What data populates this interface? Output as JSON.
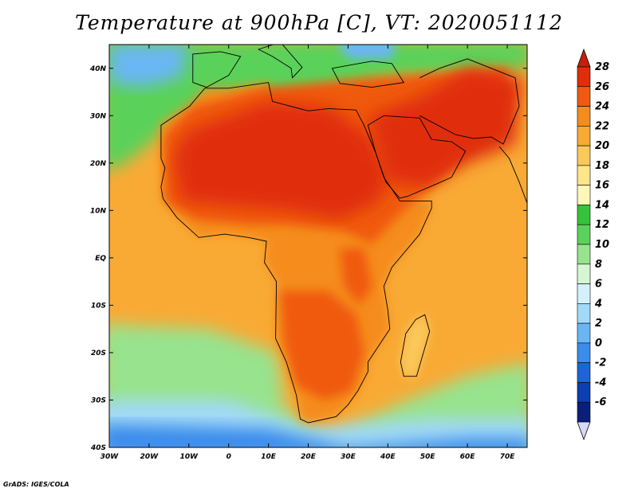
{
  "title": "Temperature at 900hPa [C], VT: 2020051112",
  "credit": "GrADS: IGES/COLA",
  "map": {
    "lon_range": [
      -30,
      75
    ],
    "lat_range": [
      -40,
      45
    ],
    "x_ticks": [
      {
        "lon": -30,
        "label": "30W"
      },
      {
        "lon": -20,
        "label": "20W"
      },
      {
        "lon": -10,
        "label": "10W"
      },
      {
        "lon": 0,
        "label": "0"
      },
      {
        "lon": 10,
        "label": "10E"
      },
      {
        "lon": 20,
        "label": "20E"
      },
      {
        "lon": 30,
        "label": "30E"
      },
      {
        "lon": 40,
        "label": "40E"
      },
      {
        "lon": 50,
        "label": "50E"
      },
      {
        "lon": 60,
        "label": "60E"
      },
      {
        "lon": 70,
        "label": "70E"
      }
    ],
    "y_ticks": [
      {
        "lat": 40,
        "label": "40N"
      },
      {
        "lat": 30,
        "label": "30N"
      },
      {
        "lat": 20,
        "label": "20N"
      },
      {
        "lat": 10,
        "label": "10N"
      },
      {
        "lat": 0,
        "label": "EQ"
      },
      {
        "lat": -10,
        "label": "10S"
      },
      {
        "lat": -20,
        "label": "20S"
      },
      {
        "lat": -30,
        "label": "30S"
      },
      {
        "lat": -40,
        "label": "40S"
      }
    ]
  },
  "colorbar": {
    "labels": [
      "28",
      "26",
      "24",
      "22",
      "20",
      "18",
      "16",
      "14",
      "12",
      "10",
      "8",
      "6",
      "4",
      "2",
      "0",
      "-2",
      "-4",
      "-6"
    ],
    "colors_top_to_bottom": [
      "#e02d0a",
      "#f05a10",
      "#f58c1e",
      "#f8aa35",
      "#fbc85a",
      "#fde58a",
      "#fdf7b8",
      "#36c23a",
      "#5ad25a",
      "#97e38e",
      "#d6f6d2",
      "#d4f0fd",
      "#a2d9f8",
      "#6ab6f4",
      "#3b8ceb",
      "#1e64d8",
      "#0d3fb2",
      "#0a1f7a"
    ],
    "top_arrow_color": "#c81e0a",
    "bottom_arrow_color": "#d8d8fa"
  },
  "field_colors": {
    "ocean_north": "#5ad25a",
    "med": "#6ab6f4",
    "atlantic": "#f8aa35",
    "indian": "#f8aa35",
    "south_cool": "#97e38e",
    "south_cold": "#a2d9f8",
    "south_coldest": "#3b8ceb",
    "sahara_hot": "#e02d0a",
    "arabia_hot": "#e02d0a",
    "land_warm": "#f05a10",
    "land_mild": "#f58c1e",
    "south_land": "#f05a10",
    "madagascar": "#fbc85a"
  },
  "contours": {
    "africa": [
      [
        -17,
        21
      ],
      [
        -17,
        28
      ],
      [
        -9.8,
        32
      ],
      [
        -6,
        35.8
      ],
      [
        0,
        35.8
      ],
      [
        10,
        37
      ],
      [
        11,
        33
      ],
      [
        20,
        31
      ],
      [
        25,
        31.5
      ],
      [
        32,
        31.2
      ],
      [
        34,
        28
      ],
      [
        37,
        22
      ],
      [
        39,
        17
      ],
      [
        43,
        12
      ],
      [
        51,
        12
      ],
      [
        51,
        10.5
      ],
      [
        48,
        5
      ],
      [
        41,
        -2
      ],
      [
        39,
        -6
      ],
      [
        40,
        -11
      ],
      [
        40.5,
        -15
      ],
      [
        35,
        -22
      ],
      [
        35,
        -24
      ],
      [
        32.5,
        -28
      ],
      [
        30,
        -31
      ],
      [
        27,
        -33.5
      ],
      [
        20,
        -34.8
      ],
      [
        18,
        -34
      ],
      [
        17,
        -29
      ],
      [
        14.5,
        -22
      ],
      [
        11.8,
        -17
      ],
      [
        12,
        -5
      ],
      [
        9,
        -1
      ],
      [
        9.5,
        3.5
      ],
      [
        5,
        4.3
      ],
      [
        -1,
        5
      ],
      [
        -7.5,
        4.3
      ],
      [
        -13,
        8.5
      ],
      [
        -16.5,
        12.5
      ],
      [
        -17,
        15
      ],
      [
        -16,
        19
      ],
      [
        -17,
        21
      ]
    ],
    "madagascar": [
      [
        49.3,
        -12
      ],
      [
        50.5,
        -15.5
      ],
      [
        47.2,
        -25
      ],
      [
        44,
        -25
      ],
      [
        43.2,
        -22
      ],
      [
        44.5,
        -16
      ],
      [
        47,
        -13
      ],
      [
        49.3,
        -12
      ]
    ],
    "arabia": [
      [
        35,
        28
      ],
      [
        37,
        22
      ],
      [
        39.5,
        16
      ],
      [
        43,
        12.6
      ],
      [
        45,
        13
      ],
      [
        52,
        15.5
      ],
      [
        56,
        17
      ],
      [
        59.5,
        22.5
      ],
      [
        56,
        24.5
      ],
      [
        51,
        25
      ],
      [
        50,
        26.5
      ],
      [
        48,
        29.5
      ],
      [
        39,
        30
      ],
      [
        35,
        28
      ]
    ],
    "iberia": [
      [
        -9,
        37
      ],
      [
        -9,
        43
      ],
      [
        -2,
        43.5
      ],
      [
        3,
        42.5
      ],
      [
        0,
        38.5
      ],
      [
        -5.6,
        36
      ],
      [
        -9,
        37
      ]
    ],
    "italy": [
      [
        7.5,
        44
      ],
      [
        13,
        45.5
      ],
      [
        18.5,
        40.2
      ],
      [
        16,
        38
      ],
      [
        15.7,
        40
      ],
      [
        11,
        42.5
      ],
      [
        7.5,
        44
      ]
    ],
    "turkey": [
      [
        26,
        40
      ],
      [
        36,
        41.5
      ],
      [
        41,
        41
      ],
      [
        44,
        37
      ],
      [
        36,
        36
      ],
      [
        28,
        36.8
      ],
      [
        26,
        40
      ]
    ],
    "iran": [
      [
        48,
        30
      ],
      [
        57,
        26
      ],
      [
        61.5,
        25.2
      ],
      [
        66,
        25.5
      ],
      [
        69,
        24
      ],
      [
        73,
        32
      ],
      [
        72,
        38
      ],
      [
        60,
        42
      ],
      [
        53,
        40
      ],
      [
        48,
        38
      ]
    ],
    "india": [
      [
        68,
        23.5
      ],
      [
        70.5,
        21
      ],
      [
        73,
        16
      ],
      [
        76.5,
        8.2
      ],
      [
        78,
        8.5
      ],
      [
        75,
        18
      ]
    ]
  }
}
